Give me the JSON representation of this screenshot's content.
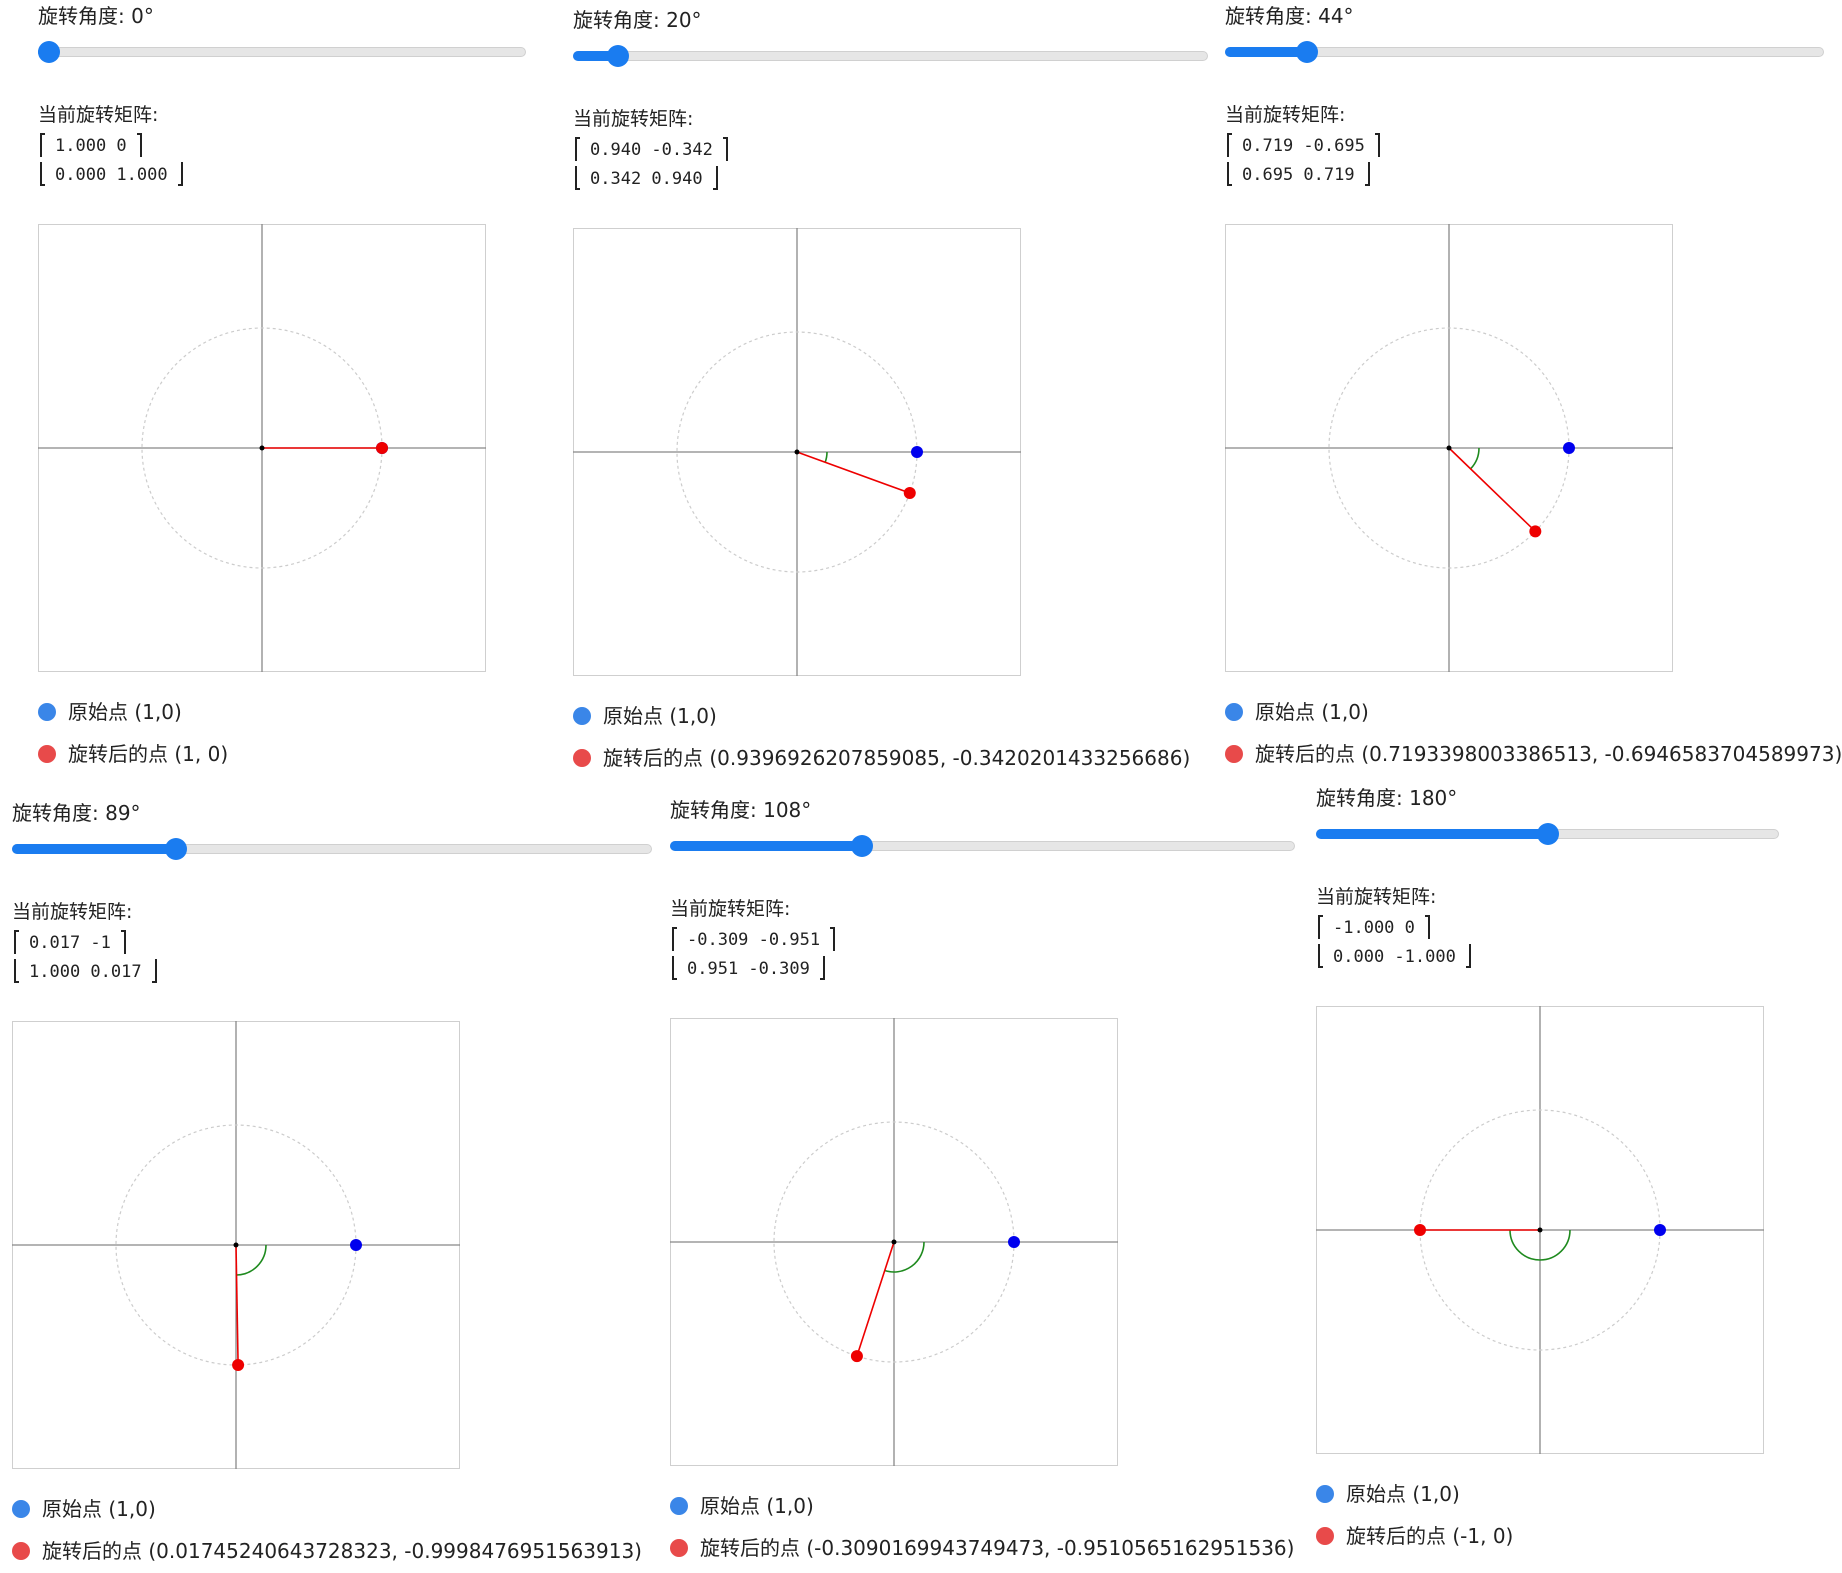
{
  "labels": {
    "angle_prefix": "旋转角度: ",
    "degree_suffix": "°",
    "matrix_title": "当前旋转矩阵:",
    "original_point": "原始点 (1,0)",
    "rotated_prefix": "旋转后的点 "
  },
  "colors": {
    "accent": "#1a7cf0",
    "legend_original": "#3a86e8",
    "legend_rotated": "#e84a4a",
    "original_point": "#0000ee",
    "rotated_point": "#ee0000",
    "angle_arc": "#1e8a1e",
    "axis": "#888888",
    "unit_circle": "#cccccc"
  },
  "slider_range": {
    "min": 0,
    "max": 360
  },
  "panels": [
    {
      "angle": 0,
      "angle_text": "旋转角度: 0°",
      "matrix": [
        [
          "1.000",
          "0"
        ],
        [
          "0.000",
          "1.000"
        ]
      ],
      "rotated_text": "旋转后的点 (1, 0)",
      "point": {
        "x": 1,
        "y": 0
      }
    },
    {
      "angle": 20,
      "angle_text": "旋转角度: 20°",
      "matrix": [
        [
          "0.940",
          "-0.342"
        ],
        [
          "0.342",
          "0.940"
        ]
      ],
      "rotated_text": "旋转后的点 (0.9396926207859085, -0.3420201433256686)",
      "point": {
        "x": 0.9396926207859085,
        "y": -0.3420201433256686
      }
    },
    {
      "angle": 44,
      "angle_text": "旋转角度: 44°",
      "matrix": [
        [
          "0.719",
          "-0.695"
        ],
        [
          "0.695",
          "0.719"
        ]
      ],
      "rotated_text": "旋转后的点 (0.7193398003386513, -0.6946583704589973)",
      "point": {
        "x": 0.7193398003386513,
        "y": -0.6946583704589973
      }
    },
    {
      "angle": 89,
      "angle_text": "旋转角度: 89°",
      "matrix": [
        [
          "0.017",
          "-1"
        ],
        [
          "1.000",
          "0.017"
        ]
      ],
      "rotated_text": "旋转后的点 (0.01745240643728323, -0.9998476951563913)",
      "point": {
        "x": 0.01745240643728323,
        "y": -0.9998476951563913
      }
    },
    {
      "angle": 108,
      "angle_text": "旋转角度: 108°",
      "matrix": [
        [
          "-0.309",
          "-0.951"
        ],
        [
          "0.951",
          "-0.309"
        ]
      ],
      "rotated_text": "旋转后的点 (-0.3090169943749473, -0.9510565162951536)",
      "point": {
        "x": -0.3090169943749473,
        "y": -0.9510565162951536
      }
    },
    {
      "angle": 180,
      "angle_text": "旋转角度: 180°",
      "matrix": [
        [
          "-1.000",
          "0"
        ],
        [
          "0.000",
          "-1.000"
        ]
      ],
      "rotated_text": "旋转后的点 (-1, 0)",
      "point": {
        "x": -1,
        "y": 0
      }
    }
  ]
}
